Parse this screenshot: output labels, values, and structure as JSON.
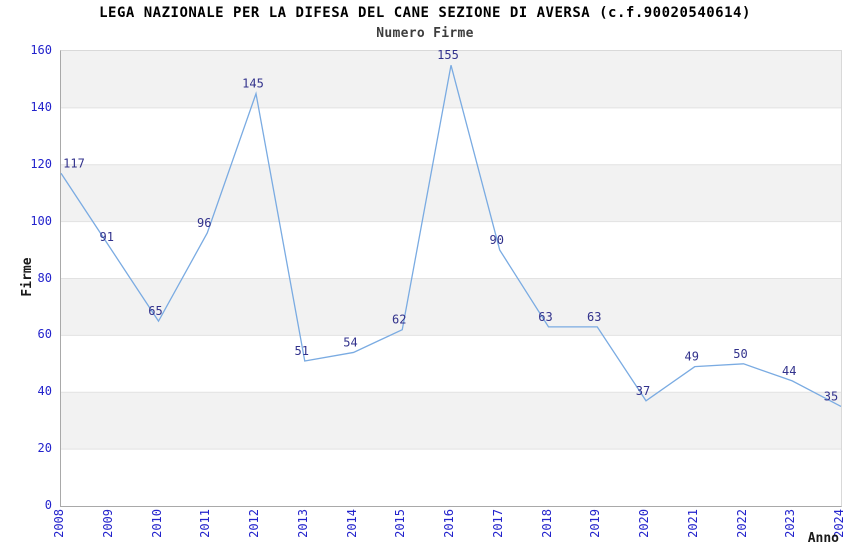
{
  "chart_data": {
    "type": "line",
    "title": "LEGA NAZIONALE PER LA DIFESA DEL CANE SEZIONE DI AVERSA (c.f.90020540614)",
    "subtitle": "Numero Firme",
    "xlabel": "Anno",
    "ylabel": "Firme",
    "categories": [
      "2008",
      "2009",
      "2010",
      "2011",
      "2012",
      "2013",
      "2014",
      "2015",
      "2016",
      "2017",
      "2018",
      "2019",
      "2020",
      "2021",
      "2022",
      "2023",
      "2024"
    ],
    "values": [
      117,
      91,
      65,
      96,
      145,
      51,
      54,
      62,
      155,
      90,
      63,
      63,
      37,
      49,
      50,
      44,
      35
    ],
    "ylim": [
      0,
      160
    ],
    "yticks": [
      0,
      20,
      40,
      60,
      80,
      100,
      120,
      140,
      160
    ],
    "grid": "horizontal",
    "legend": "none",
    "band_style": "alternating-horizontal",
    "colors": {
      "line": "#7aabe2",
      "tick_label": "#2323cc",
      "data_label": "#32328c",
      "band": "#f2f2f2",
      "gridline": "#e2e2e2",
      "title": "#000000",
      "subtitle": "#3d3d3d"
    }
  }
}
